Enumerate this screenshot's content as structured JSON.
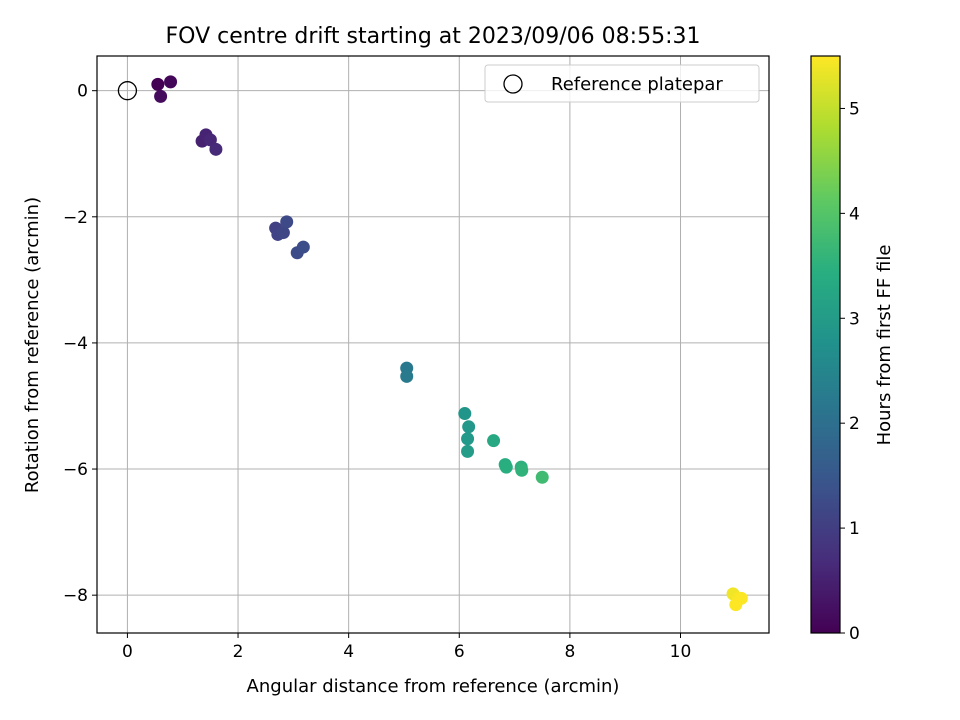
{
  "chart_data": {
    "type": "scatter",
    "title": "FOV centre drift starting at 2023/09/06 08:55:31",
    "xlabel": "Angular distance from reference (arcmin)",
    "ylabel": "Rotation from reference (arcmin)",
    "xlim": [
      -0.55,
      11.6
    ],
    "ylim": [
      -8.6,
      0.55
    ],
    "xticks": [
      0,
      2,
      4,
      6,
      8,
      10
    ],
    "xtick_labels": [
      "0",
      "2",
      "4",
      "6",
      "8",
      "10"
    ],
    "yticks": [
      0,
      -2,
      -4,
      -6,
      -8
    ],
    "ytick_labels": [
      "0",
      "−2",
      "−4",
      "−6",
      "−8"
    ],
    "grid": true,
    "legend": {
      "placement": "top-right",
      "entries": [
        "Reference platepar"
      ]
    },
    "reference_point": {
      "x": 0,
      "y": 0
    },
    "colorbar": {
      "label": "Hours from first FF file",
      "colormap": "viridis",
      "range": [
        0,
        5.5
      ],
      "ticks": [
        0,
        1,
        2,
        3,
        4,
        5
      ],
      "tick_labels": [
        "0",
        "1",
        "2",
        "3",
        "4",
        "5"
      ]
    },
    "points": [
      {
        "x": 0.55,
        "y": 0.1,
        "hours": 0.0
      },
      {
        "x": 0.78,
        "y": 0.14,
        "hours": 0.08
      },
      {
        "x": 0.6,
        "y": -0.09,
        "hours": 0.15
      },
      {
        "x": 1.35,
        "y": -0.8,
        "hours": 0.5
      },
      {
        "x": 1.42,
        "y": -0.7,
        "hours": 0.55
      },
      {
        "x": 1.5,
        "y": -0.78,
        "hours": 0.6
      },
      {
        "x": 1.6,
        "y": -0.93,
        "hours": 0.65
      },
      {
        "x": 2.68,
        "y": -2.18,
        "hours": 1.05
      },
      {
        "x": 2.72,
        "y": -2.28,
        "hours": 1.1
      },
      {
        "x": 2.82,
        "y": -2.25,
        "hours": 1.15
      },
      {
        "x": 2.88,
        "y": -2.08,
        "hours": 1.2
      },
      {
        "x": 3.07,
        "y": -2.57,
        "hours": 1.25
      },
      {
        "x": 3.18,
        "y": -2.48,
        "hours": 1.3
      },
      {
        "x": 5.05,
        "y": -4.4,
        "hours": 2.2
      },
      {
        "x": 5.05,
        "y": -4.53,
        "hours": 2.25
      },
      {
        "x": 6.1,
        "y": -5.12,
        "hours": 2.85
      },
      {
        "x": 6.17,
        "y": -5.33,
        "hours": 2.9
      },
      {
        "x": 6.15,
        "y": -5.52,
        "hours": 2.95
      },
      {
        "x": 6.15,
        "y": -5.72,
        "hours": 3.0
      },
      {
        "x": 6.62,
        "y": -5.55,
        "hours": 3.3
      },
      {
        "x": 6.83,
        "y": -5.93,
        "hours": 3.4
      },
      {
        "x": 6.85,
        "y": -5.97,
        "hours": 3.45
      },
      {
        "x": 7.12,
        "y": -5.97,
        "hours": 3.5
      },
      {
        "x": 7.13,
        "y": -6.02,
        "hours": 3.55
      },
      {
        "x": 7.5,
        "y": -6.13,
        "hours": 3.75
      },
      {
        "x": 10.95,
        "y": -7.98,
        "hours": 5.4
      },
      {
        "x": 11.05,
        "y": -8.05,
        "hours": 5.45
      },
      {
        "x": 11.1,
        "y": -8.05,
        "hours": 5.48
      },
      {
        "x": 11.0,
        "y": -8.15,
        "hours": 5.5
      }
    ]
  }
}
